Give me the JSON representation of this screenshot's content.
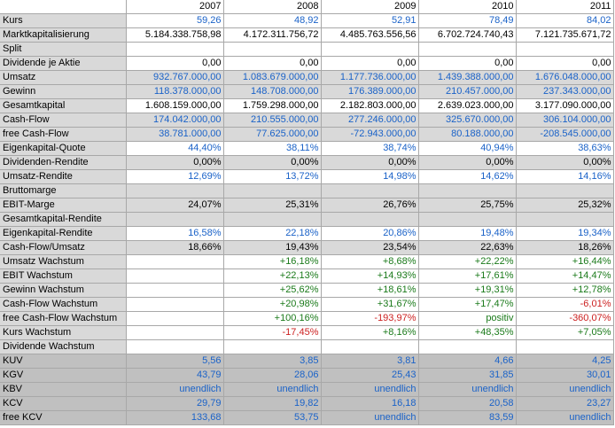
{
  "colors": {
    "black": "#000000",
    "blue": "#1a62c8",
    "green": "#1a7a1a",
    "red": "#cc1f1f",
    "row_light": "#d9d9d9",
    "row_dark": "#c0c0c0"
  },
  "years": [
    "2007",
    "2008",
    "2009",
    "2010",
    "2011"
  ],
  "rows": [
    {
      "label": "Kurs",
      "bg": "white",
      "cells": [
        {
          "v": "59,26",
          "c": "blue"
        },
        {
          "v": "48,92",
          "c": "blue"
        },
        {
          "v": "52,91",
          "c": "blue"
        },
        {
          "v": "78,49",
          "c": "blue"
        },
        {
          "v": "84,02",
          "c": "blue"
        }
      ]
    },
    {
      "label": "Marktkapitalisierung",
      "bg": "white",
      "cells": [
        {
          "v": "5.184.338.758,98",
          "c": "black"
        },
        {
          "v": "4.172.311.756,72",
          "c": "black"
        },
        {
          "v": "4.485.763.556,56",
          "c": "black"
        },
        {
          "v": "6.702.724.740,43",
          "c": "black"
        },
        {
          "v": "7.121.735.671,72",
          "c": "black"
        }
      ]
    },
    {
      "label": "Split",
      "bg": "white",
      "cells": [
        {
          "v": "",
          "c": "black"
        },
        {
          "v": "",
          "c": "black"
        },
        {
          "v": "",
          "c": "black"
        },
        {
          "v": "",
          "c": "black"
        },
        {
          "v": "",
          "c": "black"
        }
      ]
    },
    {
      "label": "Dividende je Aktie",
      "bg": "white",
      "cells": [
        {
          "v": "0,00",
          "c": "black"
        },
        {
          "v": "0,00",
          "c": "black"
        },
        {
          "v": "0,00",
          "c": "black"
        },
        {
          "v": "0,00",
          "c": "black"
        },
        {
          "v": "0,00",
          "c": "black"
        }
      ]
    },
    {
      "label": "Umsatz",
      "bg": "light",
      "cells": [
        {
          "v": "932.767.000,00",
          "c": "blue"
        },
        {
          "v": "1.083.679.000,00",
          "c": "blue"
        },
        {
          "v": "1.177.736.000,00",
          "c": "blue"
        },
        {
          "v": "1.439.388.000,00",
          "c": "blue"
        },
        {
          "v": "1.676.048.000,00",
          "c": "blue"
        }
      ]
    },
    {
      "label": "Gewinn",
      "bg": "light",
      "cells": [
        {
          "v": "118.378.000,00",
          "c": "blue"
        },
        {
          "v": "148.708.000,00",
          "c": "blue"
        },
        {
          "v": "176.389.000,00",
          "c": "blue"
        },
        {
          "v": "210.457.000,00",
          "c": "blue"
        },
        {
          "v": "237.343.000,00",
          "c": "blue"
        }
      ]
    },
    {
      "label": "Gesamtkapital",
      "bg": "white",
      "cells": [
        {
          "v": "1.608.159.000,00",
          "c": "black"
        },
        {
          "v": "1.759.298.000,00",
          "c": "black"
        },
        {
          "v": "2.182.803.000,00",
          "c": "black"
        },
        {
          "v": "2.639.023.000,00",
          "c": "black"
        },
        {
          "v": "3.177.090.000,00",
          "c": "black"
        }
      ]
    },
    {
      "label": "Cash-Flow",
      "bg": "light",
      "cells": [
        {
          "v": "174.042.000,00",
          "c": "blue"
        },
        {
          "v": "210.555.000,00",
          "c": "blue"
        },
        {
          "v": "277.246.000,00",
          "c": "blue"
        },
        {
          "v": "325.670.000,00",
          "c": "blue"
        },
        {
          "v": "306.104.000,00",
          "c": "blue"
        }
      ]
    },
    {
      "label": "free Cash-Flow",
      "bg": "light",
      "cells": [
        {
          "v": "38.781.000,00",
          "c": "blue"
        },
        {
          "v": "77.625.000,00",
          "c": "blue"
        },
        {
          "v": "-72.943.000,00",
          "c": "blue"
        },
        {
          "v": "80.188.000,00",
          "c": "blue"
        },
        {
          "v": "-208.545.000,00",
          "c": "blue"
        }
      ]
    },
    {
      "label": "Eigenkapital-Quote",
      "bg": "white",
      "cells": [
        {
          "v": "44,40%",
          "c": "blue"
        },
        {
          "v": "38,11%",
          "c": "blue"
        },
        {
          "v": "38,74%",
          "c": "blue"
        },
        {
          "v": "40,94%",
          "c": "blue"
        },
        {
          "v": "38,63%",
          "c": "blue"
        }
      ]
    },
    {
      "label": "Dividenden-Rendite",
      "bg": "light",
      "cells": [
        {
          "v": "0,00%",
          "c": "black"
        },
        {
          "v": "0,00%",
          "c": "black"
        },
        {
          "v": "0,00%",
          "c": "black"
        },
        {
          "v": "0,00%",
          "c": "black"
        },
        {
          "v": "0,00%",
          "c": "black"
        }
      ]
    },
    {
      "label": "Umsatz-Rendite",
      "bg": "white",
      "cells": [
        {
          "v": "12,69%",
          "c": "blue"
        },
        {
          "v": "13,72%",
          "c": "blue"
        },
        {
          "v": "14,98%",
          "c": "blue"
        },
        {
          "v": "14,62%",
          "c": "blue"
        },
        {
          "v": "14,16%",
          "c": "blue"
        }
      ]
    },
    {
      "label": "Bruttomarge",
      "bg": "light",
      "cells": [
        {
          "v": "",
          "c": "black"
        },
        {
          "v": "",
          "c": "black"
        },
        {
          "v": "",
          "c": "black"
        },
        {
          "v": "",
          "c": "black"
        },
        {
          "v": "",
          "c": "black"
        }
      ]
    },
    {
      "label": "EBIT-Marge",
      "bg": "light",
      "cells": [
        {
          "v": "24,07%",
          "c": "black"
        },
        {
          "v": "25,31%",
          "c": "black"
        },
        {
          "v": "26,76%",
          "c": "black"
        },
        {
          "v": "25,75%",
          "c": "black"
        },
        {
          "v": "25,32%",
          "c": "black"
        }
      ]
    },
    {
      "label": "Gesamtkapital-Rendite",
      "bg": "light",
      "cells": [
        {
          "v": "",
          "c": "black"
        },
        {
          "v": "",
          "c": "black"
        },
        {
          "v": "",
          "c": "black"
        },
        {
          "v": "",
          "c": "black"
        },
        {
          "v": "",
          "c": "black"
        }
      ]
    },
    {
      "label": "Eigenkapital-Rendite",
      "bg": "white",
      "cells": [
        {
          "v": "16,58%",
          "c": "blue"
        },
        {
          "v": "22,18%",
          "c": "blue"
        },
        {
          "v": "20,86%",
          "c": "blue"
        },
        {
          "v": "19,48%",
          "c": "blue"
        },
        {
          "v": "19,34%",
          "c": "blue"
        }
      ]
    },
    {
      "label": "Cash-Flow/Umsatz",
      "bg": "light",
      "cells": [
        {
          "v": "18,66%",
          "c": "black"
        },
        {
          "v": "19,43%",
          "c": "black"
        },
        {
          "v": "23,54%",
          "c": "black"
        },
        {
          "v": "22,63%",
          "c": "black"
        },
        {
          "v": "18,26%",
          "c": "black"
        }
      ]
    },
    {
      "label": "Umsatz Wachstum",
      "bg": "white",
      "cells": [
        {
          "v": "",
          "c": "black"
        },
        {
          "v": "+16,18%",
          "c": "green"
        },
        {
          "v": "+8,68%",
          "c": "green"
        },
        {
          "v": "+22,22%",
          "c": "green"
        },
        {
          "v": "+16,44%",
          "c": "green"
        }
      ]
    },
    {
      "label": "EBIT Wachstum",
      "bg": "white",
      "cells": [
        {
          "v": "",
          "c": "black"
        },
        {
          "v": "+22,13%",
          "c": "green"
        },
        {
          "v": "+14,93%",
          "c": "green"
        },
        {
          "v": "+17,61%",
          "c": "green"
        },
        {
          "v": "+14,47%",
          "c": "green"
        }
      ]
    },
    {
      "label": "Gewinn Wachstum",
      "bg": "white",
      "cells": [
        {
          "v": "",
          "c": "black"
        },
        {
          "v": "+25,62%",
          "c": "green"
        },
        {
          "v": "+18,61%",
          "c": "green"
        },
        {
          "v": "+19,31%",
          "c": "green"
        },
        {
          "v": "+12,78%",
          "c": "green"
        }
      ]
    },
    {
      "label": "Cash-Flow Wachstum",
      "bg": "white",
      "cells": [
        {
          "v": "",
          "c": "black"
        },
        {
          "v": "+20,98%",
          "c": "green"
        },
        {
          "v": "+31,67%",
          "c": "green"
        },
        {
          "v": "+17,47%",
          "c": "green"
        },
        {
          "v": "-6,01%",
          "c": "red"
        }
      ]
    },
    {
      "label": "free Cash-Flow Wachstum",
      "bg": "white",
      "cells": [
        {
          "v": "",
          "c": "black"
        },
        {
          "v": "+100,16%",
          "c": "green"
        },
        {
          "v": "-193,97%",
          "c": "red"
        },
        {
          "v": "positiv",
          "c": "green"
        },
        {
          "v": "-360,07%",
          "c": "red"
        }
      ]
    },
    {
      "label": "Kurs Wachstum",
      "bg": "white",
      "cells": [
        {
          "v": "",
          "c": "black"
        },
        {
          "v": "-17,45%",
          "c": "red"
        },
        {
          "v": "+8,16%",
          "c": "green"
        },
        {
          "v": "+48,35%",
          "c": "green"
        },
        {
          "v": "+7,05%",
          "c": "green"
        }
      ]
    },
    {
      "label": "Dividende Wachstum",
      "bg": "white",
      "cells": [
        {
          "v": "",
          "c": "black"
        },
        {
          "v": "",
          "c": "black"
        },
        {
          "v": "",
          "c": "black"
        },
        {
          "v": "",
          "c": "black"
        },
        {
          "v": "",
          "c": "black"
        }
      ]
    },
    {
      "label": "KUV",
      "bg": "dark",
      "cells": [
        {
          "v": "5,56",
          "c": "blue"
        },
        {
          "v": "3,85",
          "c": "blue"
        },
        {
          "v": "3,81",
          "c": "blue"
        },
        {
          "v": "4,66",
          "c": "blue"
        },
        {
          "v": "4,25",
          "c": "blue"
        }
      ]
    },
    {
      "label": "KGV",
      "bg": "dark",
      "cells": [
        {
          "v": "43,79",
          "c": "blue"
        },
        {
          "v": "28,06",
          "c": "blue"
        },
        {
          "v": "25,43",
          "c": "blue"
        },
        {
          "v": "31,85",
          "c": "blue"
        },
        {
          "v": "30,01",
          "c": "blue"
        }
      ]
    },
    {
      "label": "KBV",
      "bg": "dark",
      "cells": [
        {
          "v": "unendlich",
          "c": "blue"
        },
        {
          "v": "unendlich",
          "c": "blue"
        },
        {
          "v": "unendlich",
          "c": "blue"
        },
        {
          "v": "unendlich",
          "c": "blue"
        },
        {
          "v": "unendlich",
          "c": "blue"
        }
      ]
    },
    {
      "label": "KCV",
      "bg": "dark",
      "cells": [
        {
          "v": "29,79",
          "c": "blue"
        },
        {
          "v": "19,82",
          "c": "blue"
        },
        {
          "v": "16,18",
          "c": "blue"
        },
        {
          "v": "20,58",
          "c": "blue"
        },
        {
          "v": "23,27",
          "c": "blue"
        }
      ]
    },
    {
      "label": "free KCV",
      "bg": "dark",
      "cells": [
        {
          "v": "133,68",
          "c": "blue"
        },
        {
          "v": "53,75",
          "c": "blue"
        },
        {
          "v": "unendlich",
          "c": "blue"
        },
        {
          "v": "83,59",
          "c": "blue"
        },
        {
          "v": "unendlich",
          "c": "blue"
        }
      ]
    }
  ]
}
